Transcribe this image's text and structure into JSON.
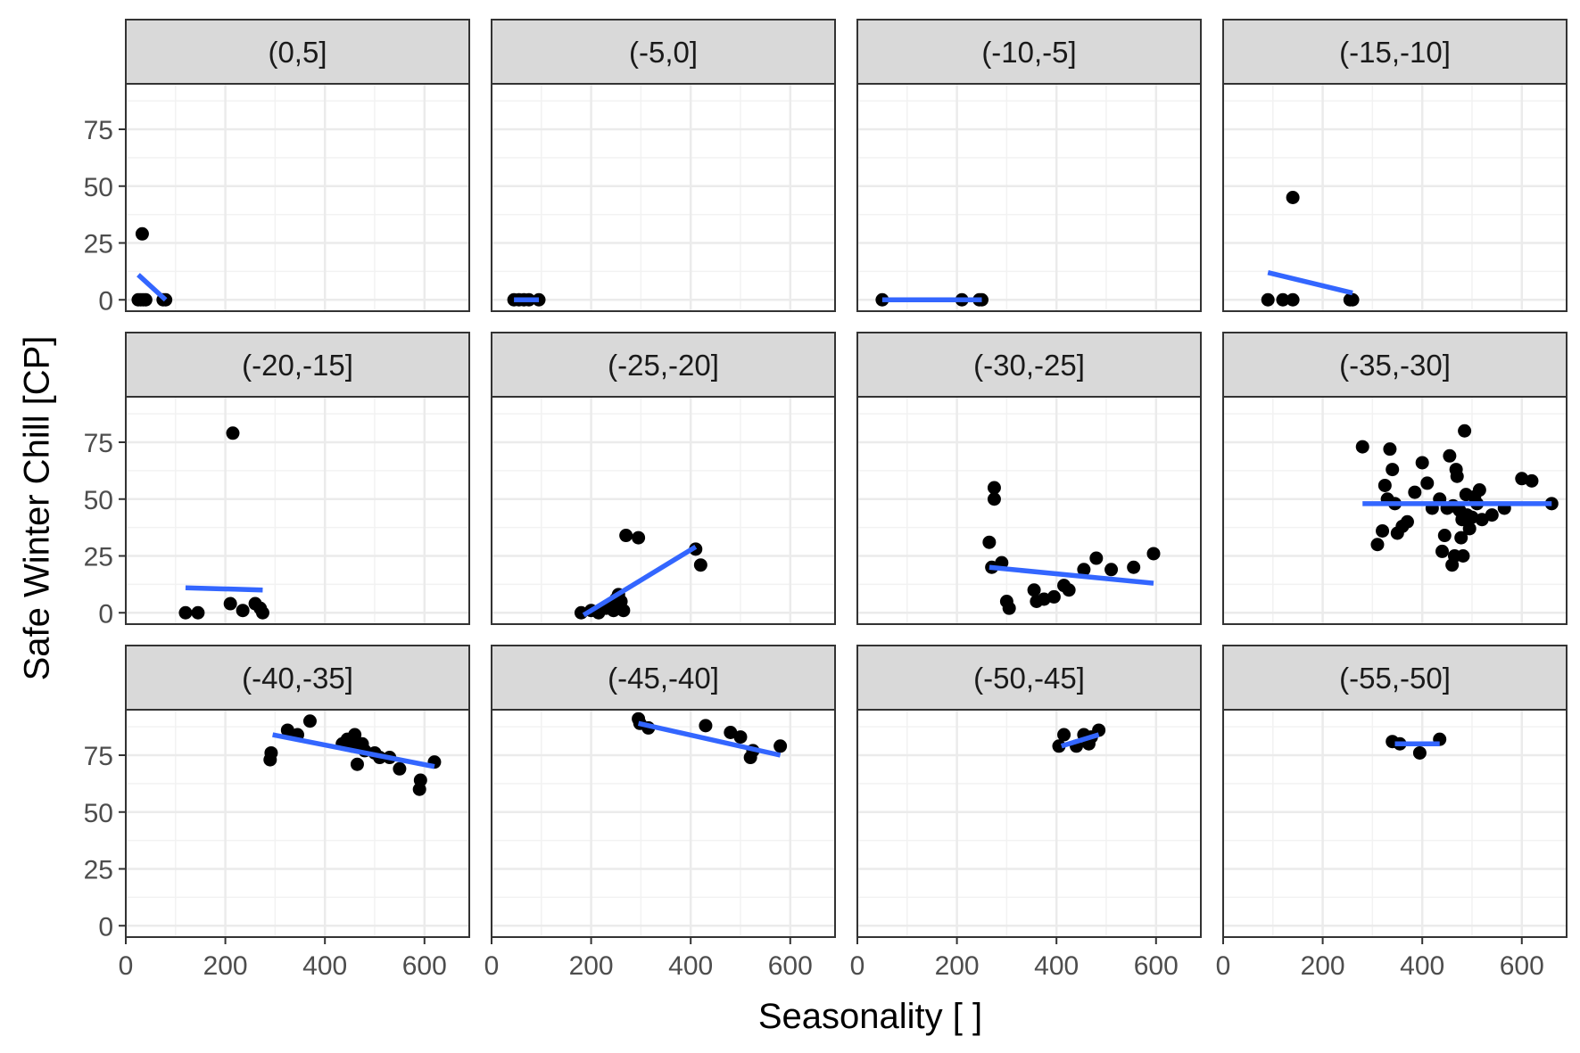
{
  "chart_data": {
    "type": "scatter",
    "xlabel": "Seasonality [ ]",
    "ylabel": "Safe Winter Chill [CP]",
    "xlim": [
      0,
      690
    ],
    "ylim": [
      -5,
      95
    ],
    "x_ticks": [
      0,
      200,
      400,
      600
    ],
    "y_ticks": [
      0,
      25,
      50,
      75
    ],
    "grid": true,
    "colors": {
      "points": "#000000",
      "fit_line": "#3366ff",
      "strip": "#d9d9d9",
      "grid": "#ebebeb",
      "border": "#333333"
    },
    "panels": [
      {
        "label": "(0,5]",
        "points": [
          [
            25,
            0
          ],
          [
            30,
            0
          ],
          [
            35,
            0
          ],
          [
            40,
            0
          ],
          [
            75,
            0
          ],
          [
            80,
            0
          ],
          [
            33,
            29
          ]
        ],
        "fit": [
          [
            25,
            11
          ],
          [
            80,
            0
          ]
        ]
      },
      {
        "label": "(-5,0]",
        "points": [
          [
            45,
            0
          ],
          [
            55,
            0
          ],
          [
            65,
            0
          ],
          [
            75,
            0
          ],
          [
            95,
            0
          ]
        ],
        "fit": [
          [
            45,
            0
          ],
          [
            95,
            0
          ]
        ]
      },
      {
        "label": "(-10,-5]",
        "points": [
          [
            50,
            0
          ],
          [
            210,
            0
          ],
          [
            245,
            0
          ],
          [
            250,
            0
          ]
        ],
        "fit": [
          [
            50,
            0
          ],
          [
            250,
            0
          ]
        ]
      },
      {
        "label": "(-15,-10]",
        "points": [
          [
            90,
            0
          ],
          [
            120,
            0
          ],
          [
            140,
            0
          ],
          [
            140,
            45
          ],
          [
            255,
            0
          ],
          [
            260,
            0
          ]
        ],
        "fit": [
          [
            90,
            12
          ],
          [
            260,
            3
          ]
        ]
      },
      {
        "label": "(-20,-15]",
        "points": [
          [
            120,
            0
          ],
          [
            145,
            0
          ],
          [
            210,
            4
          ],
          [
            215,
            79
          ],
          [
            235,
            1
          ],
          [
            260,
            4
          ],
          [
            270,
            2
          ],
          [
            275,
            0
          ]
        ],
        "fit": [
          [
            120,
            11
          ],
          [
            275,
            10
          ]
        ]
      },
      {
        "label": "(-25,-20]",
        "points": [
          [
            180,
            0
          ],
          [
            200,
            1
          ],
          [
            215,
            0
          ],
          [
            230,
            2
          ],
          [
            240,
            4
          ],
          [
            245,
            1
          ],
          [
            250,
            6
          ],
          [
            255,
            8
          ],
          [
            260,
            5
          ],
          [
            265,
            1
          ],
          [
            270,
            34
          ],
          [
            295,
            33
          ],
          [
            410,
            28
          ],
          [
            420,
            21
          ]
        ],
        "fit": [
          [
            185,
            -1
          ],
          [
            410,
            29
          ]
        ]
      },
      {
        "label": "(-30,-25]",
        "points": [
          [
            265,
            31
          ],
          [
            270,
            20
          ],
          [
            275,
            50
          ],
          [
            275,
            55
          ],
          [
            290,
            22
          ],
          [
            300,
            5
          ],
          [
            305,
            2
          ],
          [
            355,
            10
          ],
          [
            360,
            5
          ],
          [
            375,
            6
          ],
          [
            395,
            7
          ],
          [
            415,
            12
          ],
          [
            425,
            10
          ],
          [
            455,
            19
          ],
          [
            480,
            24
          ],
          [
            510,
            19
          ],
          [
            555,
            20
          ],
          [
            595,
            26
          ]
        ],
        "fit": [
          [
            265,
            20
          ],
          [
            595,
            13
          ]
        ]
      },
      {
        "label": "(-35,-30]",
        "points": [
          [
            280,
            73
          ],
          [
            310,
            30
          ],
          [
            320,
            36
          ],
          [
            325,
            56
          ],
          [
            330,
            50
          ],
          [
            335,
            72
          ],
          [
            340,
            63
          ],
          [
            345,
            48
          ],
          [
            350,
            35
          ],
          [
            360,
            38
          ],
          [
            370,
            40
          ],
          [
            385,
            53
          ],
          [
            400,
            66
          ],
          [
            410,
            57
          ],
          [
            420,
            46
          ],
          [
            435,
            50
          ],
          [
            440,
            27
          ],
          [
            445,
            34
          ],
          [
            450,
            46
          ],
          [
            455,
            69
          ],
          [
            460,
            21
          ],
          [
            462,
            47
          ],
          [
            465,
            25
          ],
          [
            468,
            63
          ],
          [
            470,
            60
          ],
          [
            475,
            45
          ],
          [
            478,
            33
          ],
          [
            480,
            41
          ],
          [
            482,
            25
          ],
          [
            485,
            80
          ],
          [
            488,
            52
          ],
          [
            490,
            43
          ],
          [
            495,
            37
          ],
          [
            500,
            42
          ],
          [
            505,
            51
          ],
          [
            510,
            48
          ],
          [
            515,
            54
          ],
          [
            520,
            41
          ],
          [
            540,
            43
          ],
          [
            565,
            46
          ],
          [
            600,
            59
          ],
          [
            620,
            58
          ],
          [
            660,
            48
          ]
        ],
        "fit": [
          [
            280,
            48
          ],
          [
            660,
            48
          ]
        ]
      },
      {
        "label": "(-40,-35]",
        "points": [
          [
            290,
            73
          ],
          [
            292,
            76
          ],
          [
            325,
            86
          ],
          [
            345,
            84
          ],
          [
            370,
            90
          ],
          [
            435,
            80
          ],
          [
            445,
            82
          ],
          [
            455,
            79
          ],
          [
            460,
            84
          ],
          [
            465,
            71
          ],
          [
            475,
            80
          ],
          [
            480,
            77
          ],
          [
            500,
            76
          ],
          [
            510,
            74
          ],
          [
            530,
            74
          ],
          [
            550,
            69
          ],
          [
            590,
            60
          ],
          [
            592,
            64
          ],
          [
            620,
            72
          ]
        ],
        "fit": [
          [
            295,
            84
          ],
          [
            620,
            70
          ]
        ]
      },
      {
        "label": "(-45,-40]",
        "points": [
          [
            295,
            91
          ],
          [
            298,
            89
          ],
          [
            315,
            87
          ],
          [
            430,
            88
          ],
          [
            480,
            85
          ],
          [
            500,
            83
          ],
          [
            520,
            74
          ],
          [
            525,
            77
          ],
          [
            580,
            79
          ]
        ],
        "fit": [
          [
            295,
            89
          ],
          [
            580,
            75
          ]
        ]
      },
      {
        "label": "(-50,-45]",
        "points": [
          [
            405,
            79
          ],
          [
            415,
            84
          ],
          [
            440,
            79
          ],
          [
            455,
            84
          ],
          [
            465,
            80
          ],
          [
            470,
            83
          ],
          [
            485,
            86
          ]
        ],
        "fit": [
          [
            410,
            79
          ],
          [
            485,
            84
          ]
        ]
      },
      {
        "label": "(-55,-50]",
        "points": [
          [
            340,
            81
          ],
          [
            355,
            80
          ],
          [
            395,
            76
          ],
          [
            435,
            82
          ]
        ],
        "fit": [
          [
            345,
            80
          ],
          [
            435,
            80
          ]
        ]
      }
    ]
  }
}
